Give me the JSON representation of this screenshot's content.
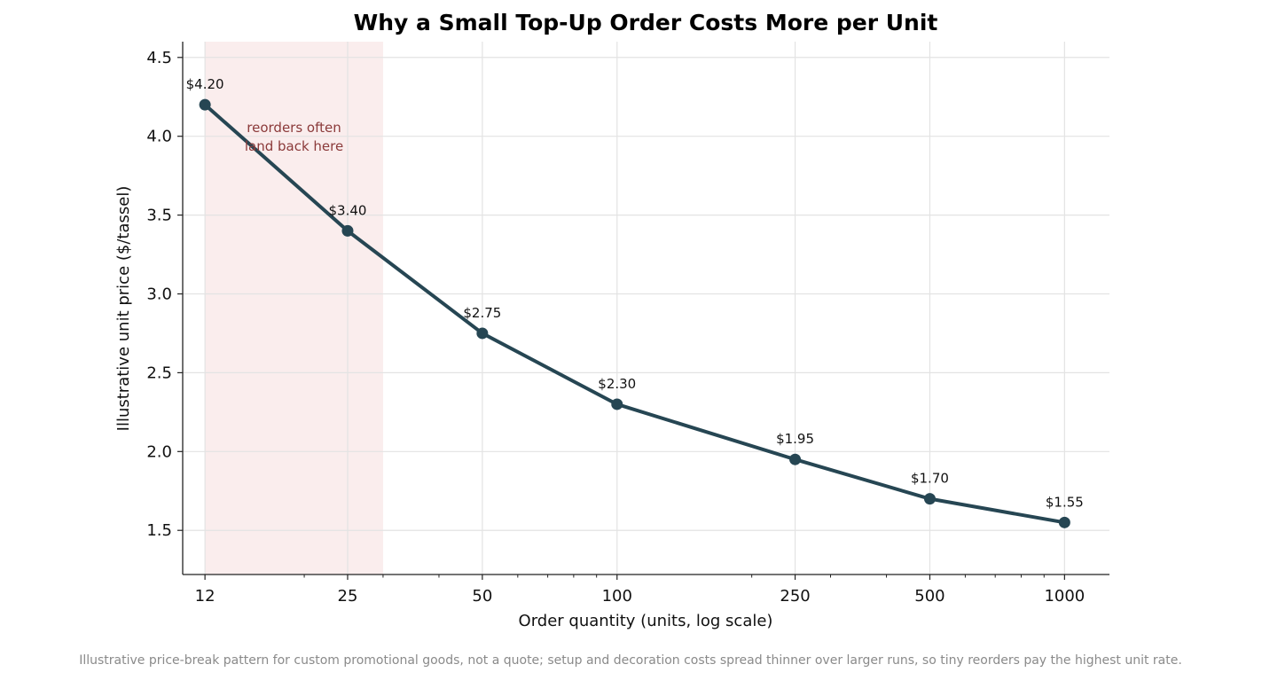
{
  "chart_data": {
    "type": "line",
    "title": "Why a Small Top-Up Order Costs More per Unit",
    "xlabel": "Order quantity (units, log scale)",
    "ylabel": "Illustrative unit price ($/tassel)",
    "x_scale": "log",
    "x": [
      12,
      25,
      50,
      100,
      250,
      500,
      1000
    ],
    "x_tick_labels": [
      "12",
      "25",
      "50",
      "100",
      "250",
      "500",
      "1000"
    ],
    "y": [
      4.2,
      3.4,
      2.75,
      2.3,
      1.95,
      1.7,
      1.55
    ],
    "data_labels": [
      "$4.20",
      "$3.40",
      "$2.75",
      "$2.30",
      "$1.95",
      "$1.70",
      "$1.55"
    ],
    "y_ticks": [
      1.5,
      2.0,
      2.5,
      3.0,
      3.5,
      4.0,
      4.5
    ],
    "y_tick_labels": [
      "1.5",
      "2.0",
      "2.5",
      "3.0",
      "3.5",
      "4.0",
      "4.5"
    ],
    "ylim": [
      1.22,
      4.6
    ],
    "xlim": [
      10.7,
      1260
    ],
    "grid": true,
    "highlight_band": {
      "x_range": [
        12,
        30
      ],
      "annotation_lines": [
        "reorders often",
        "land back here"
      ],
      "color": "#f3d6d6"
    },
    "line_color": "#264653",
    "annotation_color": "#8b3a3a"
  },
  "caption": "Illustrative price-break pattern for custom promotional goods, not a quote; setup and decoration costs spread thinner over larger runs, so tiny reorders pay the highest unit rate."
}
